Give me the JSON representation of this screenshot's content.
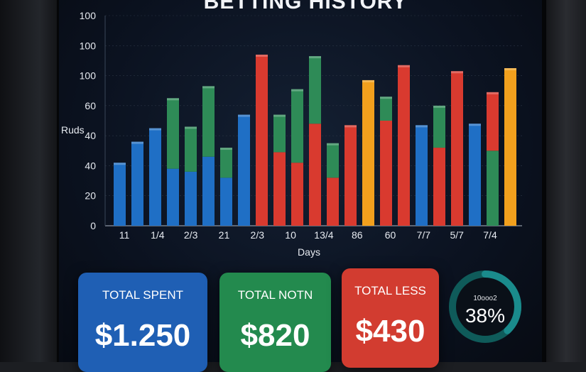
{
  "title": "BETTING HISTORY",
  "cards": [
    {
      "label": "TOTAL SPENT",
      "value": "$1.250",
      "color": "#1f5fb4"
    },
    {
      "label": "TOTAL NOTN",
      "value": "$820",
      "color": "#238a4e"
    },
    {
      "label": "TOTAL LESS",
      "value": "$430",
      "color": "#d23c30"
    }
  ],
  "ring": {
    "label": "10ooo2",
    "value": "38%",
    "fraction": 0.38,
    "color": "#1a8b8c"
  },
  "chart_data": {
    "type": "bar",
    "xlabel": "Days",
    "ylabel": "Ruds",
    "y_tick_labels": [
      "0",
      "20",
      "40",
      "40",
      "60",
      "100",
      "100",
      "100"
    ],
    "x_tick_labels": [
      "11",
      "1/4",
      "2/3",
      "21",
      "2/3",
      "10",
      "13/4",
      "86",
      "60",
      "7/7",
      "5/7",
      "7/4"
    ],
    "colors": {
      "blue": "#1f6fc5",
      "green": "#2e8b57",
      "red": "#d93a2f",
      "orange": "#f2a01d"
    },
    "bars": [
      {
        "color": "blue",
        "total": 42
      },
      {
        "color": "blue",
        "total": 56
      },
      {
        "color": "blue",
        "total": 65
      },
      {
        "color": "blue",
        "total": 38,
        "top_color": "green",
        "top": 85
      },
      {
        "color": "blue",
        "total": 36,
        "top_color": "green",
        "top": 66
      },
      {
        "color": "blue",
        "total": 46,
        "top_color": "green",
        "top": 93
      },
      {
        "color": "blue",
        "total": 32,
        "top_color": "green",
        "top": 52
      },
      {
        "color": "blue",
        "total": 74
      },
      {
        "color": "red",
        "total": 114
      },
      {
        "color": "red",
        "total": 49,
        "top_color": "green",
        "top": 74
      },
      {
        "color": "red",
        "total": 42,
        "top_color": "green",
        "top": 91
      },
      {
        "color": "red",
        "total": 68,
        "top_color": "green",
        "top": 113
      },
      {
        "color": "red",
        "total": 32,
        "top_color": "green",
        "top": 55
      },
      {
        "color": "red",
        "total": 67
      },
      {
        "color": "orange",
        "total": 97
      },
      {
        "color": "red",
        "total": 70,
        "top_color": "green",
        "top": 86
      },
      {
        "color": "red",
        "total": 107
      },
      {
        "color": "blue",
        "total": 67
      },
      {
        "color": "red",
        "total": 52,
        "top_color": "green",
        "top": 80
      },
      {
        "color": "red",
        "total": 103
      },
      {
        "color": "blue",
        "total": 68
      },
      {
        "color": "green",
        "total": 50,
        "top_color": "red",
        "top": 89
      },
      {
        "color": "orange",
        "total": 105
      }
    ]
  }
}
